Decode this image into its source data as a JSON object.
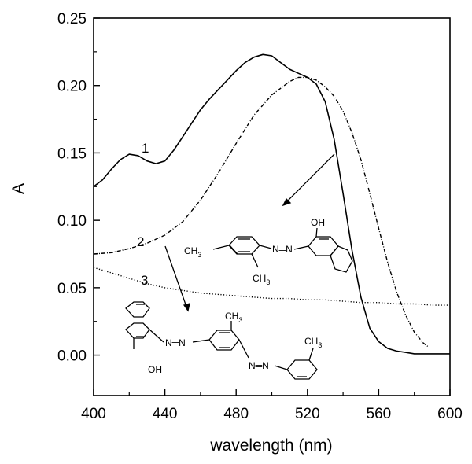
{
  "chart_data": {
    "type": "line",
    "xlabel": "wavelength (nm)",
    "ylabel": "A",
    "xlim": [
      400,
      600
    ],
    "ylim": [
      -0.03,
      0.25
    ],
    "x_ticks": [
      400,
      440,
      480,
      520,
      560,
      600
    ],
    "y_ticks": [
      0.0,
      0.05,
      0.1,
      0.15,
      0.2,
      0.25
    ],
    "y_tick_labels": [
      "0.00",
      "0.05",
      "0.10",
      "0.15",
      "0.20",
      "0.25"
    ],
    "grid": false,
    "series": [
      {
        "name": "1",
        "style": "solid",
        "points": [
          [
            400,
            0.125
          ],
          [
            405,
            0.13
          ],
          [
            410,
            0.138
          ],
          [
            415,
            0.145
          ],
          [
            420,
            0.149
          ],
          [
            425,
            0.148
          ],
          [
            430,
            0.144
          ],
          [
            435,
            0.142
          ],
          [
            440,
            0.144
          ],
          [
            445,
            0.152
          ],
          [
            450,
            0.162
          ],
          [
            455,
            0.172
          ],
          [
            460,
            0.182
          ],
          [
            465,
            0.19
          ],
          [
            470,
            0.197
          ],
          [
            475,
            0.204
          ],
          [
            480,
            0.211
          ],
          [
            485,
            0.217
          ],
          [
            490,
            0.221
          ],
          [
            495,
            0.223
          ],
          [
            500,
            0.222
          ],
          [
            505,
            0.217
          ],
          [
            510,
            0.212
          ],
          [
            515,
            0.209
          ],
          [
            520,
            0.206
          ],
          [
            525,
            0.201
          ],
          [
            530,
            0.188
          ],
          [
            535,
            0.16
          ],
          [
            540,
            0.12
          ],
          [
            545,
            0.078
          ],
          [
            550,
            0.043
          ],
          [
            555,
            0.02
          ],
          [
            560,
            0.01
          ],
          [
            565,
            0.005
          ],
          [
            570,
            0.003
          ],
          [
            575,
            0.002
          ],
          [
            580,
            0.001
          ],
          [
            590,
            0.001
          ],
          [
            600,
            0.001
          ]
        ]
      },
      {
        "name": "2",
        "style": "dash-dot",
        "points": [
          [
            400,
            0.075
          ],
          [
            410,
            0.076
          ],
          [
            420,
            0.079
          ],
          [
            430,
            0.083
          ],
          [
            440,
            0.089
          ],
          [
            450,
            0.099
          ],
          [
            460,
            0.115
          ],
          [
            470,
            0.135
          ],
          [
            480,
            0.157
          ],
          [
            490,
            0.178
          ],
          [
            500,
            0.193
          ],
          [
            510,
            0.203
          ],
          [
            515,
            0.206
          ],
          [
            520,
            0.206
          ],
          [
            525,
            0.204
          ],
          [
            530,
            0.199
          ],
          [
            535,
            0.192
          ],
          [
            540,
            0.181
          ],
          [
            545,
            0.165
          ],
          [
            550,
            0.145
          ],
          [
            555,
            0.12
          ],
          [
            560,
            0.094
          ],
          [
            565,
            0.069
          ],
          [
            570,
            0.047
          ],
          [
            575,
            0.03
          ],
          [
            580,
            0.017
          ],
          [
            585,
            0.009
          ],
          [
            588,
            0.006
          ]
        ]
      },
      {
        "name": "3",
        "style": "dotted",
        "points": [
          [
            400,
            0.065
          ],
          [
            410,
            0.061
          ],
          [
            420,
            0.057
          ],
          [
            430,
            0.053
          ],
          [
            440,
            0.05
          ],
          [
            450,
            0.048
          ],
          [
            460,
            0.046
          ],
          [
            470,
            0.045
          ],
          [
            480,
            0.044
          ],
          [
            490,
            0.043
          ],
          [
            500,
            0.042
          ],
          [
            510,
            0.042
          ],
          [
            520,
            0.041
          ],
          [
            530,
            0.041
          ],
          [
            540,
            0.04
          ],
          [
            550,
            0.039
          ],
          [
            560,
            0.039
          ],
          [
            570,
            0.038
          ],
          [
            580,
            0.038
          ],
          [
            590,
            0.037
          ],
          [
            600,
            0.037
          ]
        ]
      }
    ],
    "annotations": {
      "curve_labels": [
        "1",
        "2",
        "3"
      ],
      "structure_top": {
        "ch3_left": "CH",
        "ch3_right": "CH",
        "sub": "3",
        "oh": "OH",
        "azo": "N═N"
      },
      "structure_bottom": {
        "ch3_top": "CH",
        "ch3_right": "CH",
        "sub": "3",
        "oh": "OH",
        "azo1": "N═N",
        "azo2": "N═N"
      }
    }
  }
}
